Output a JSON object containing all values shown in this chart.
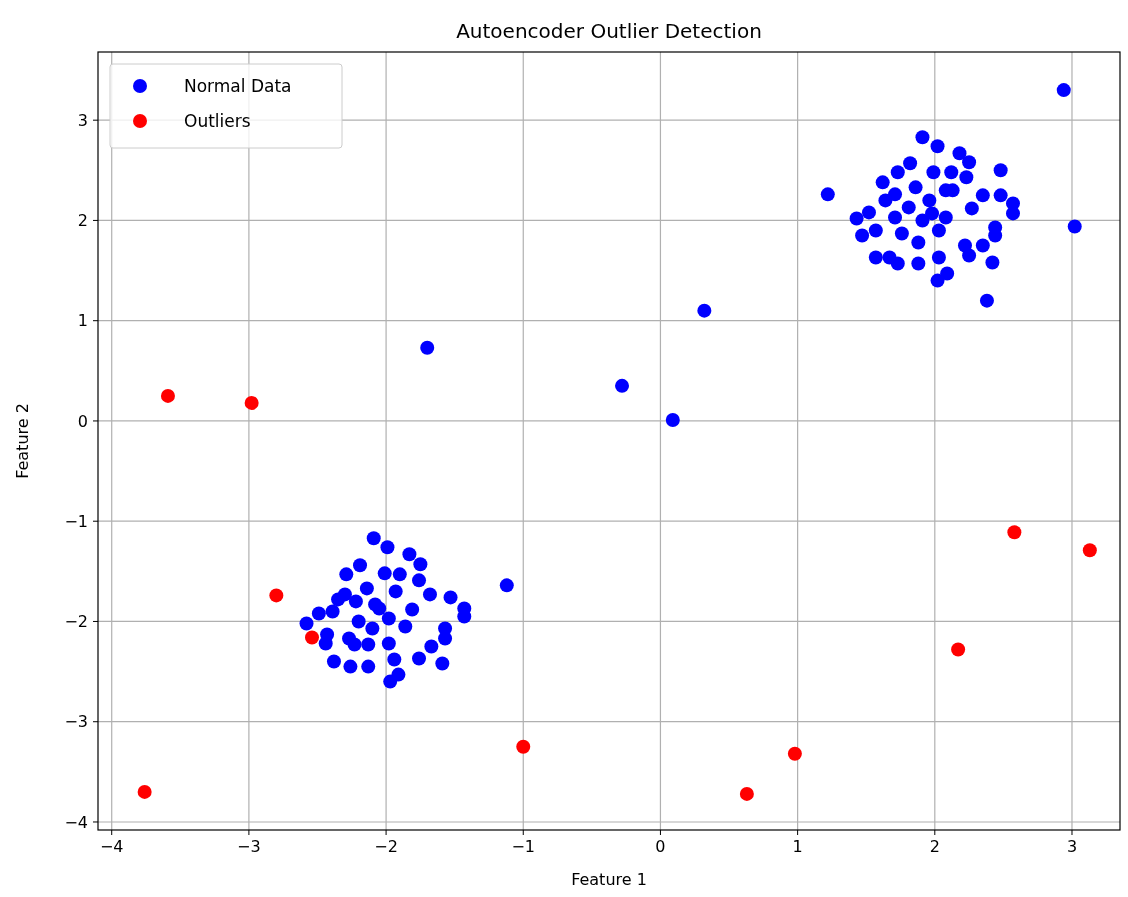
{
  "chart_data": {
    "type": "scatter",
    "title": "Autoencoder Outlier Detection",
    "xlabel": "Feature 1",
    "ylabel": "Feature 2",
    "xlim": [
      -4.1,
      3.35
    ],
    "ylim": [
      -4.08,
      3.68
    ],
    "xticks": [
      -4,
      -3,
      -2,
      -1,
      0,
      1,
      2,
      3
    ],
    "yticks": [
      -4,
      -3,
      -2,
      -1,
      0,
      1,
      2,
      3
    ],
    "grid": true,
    "legend": "top left",
    "marker": "circle",
    "series": [
      {
        "name": "Normal Data",
        "color": "#0000ff",
        "x": [
          -2.09,
          -1.99,
          -1.83,
          -1.75,
          -2.19,
          -2.29,
          -2.01,
          -1.9,
          -1.76,
          -2.14,
          -1.93,
          -1.68,
          -1.53,
          -2.35,
          -2.22,
          -2.08,
          -1.81,
          -1.43,
          -1.43,
          -2.49,
          -2.58,
          -2.39,
          -1.98,
          -2.2,
          -2.1,
          -1.86,
          -1.57,
          -1.57,
          -2.43,
          -2.44,
          -2.27,
          -1.98,
          -1.67,
          -1.76,
          -1.59,
          -2.38,
          -2.26,
          -2.13,
          -1.94,
          -1.91,
          -1.97,
          -2.23,
          -2.05,
          -2.3,
          -2.13,
          -1.12,
          1.91,
          2.02,
          2.18,
          2.25,
          1.82,
          1.73,
          2.48,
          1.99,
          2.12,
          1.62,
          2.23,
          1.86,
          2.08,
          1.22,
          1.71,
          2.35,
          2.48,
          1.64,
          1.96,
          2.57,
          2.57,
          2.27,
          1.81,
          1.52,
          1.43,
          2.08,
          1.71,
          1.91,
          2.44,
          2.44,
          3.02,
          1.47,
          1.57,
          1.76,
          2.03,
          1.88,
          2.22,
          2.35,
          1.57,
          1.73,
          1.88,
          2.03,
          2.25,
          2.42,
          2.09,
          2.02,
          2.38,
          1.67,
          1.98,
          2.13,
          2.94,
          -1.7,
          -0.28,
          0.09,
          0.32
        ],
        "values": [
          -1.17,
          -1.26,
          -1.33,
          -1.43,
          -1.44,
          -1.53,
          -1.52,
          -1.53,
          -1.59,
          -1.67,
          -1.7,
          -1.73,
          -1.76,
          -1.78,
          -1.8,
          -1.83,
          -1.88,
          -1.87,
          -1.95,
          -1.92,
          -2.02,
          -1.9,
          -1.97,
          -2.0,
          -2.07,
          -2.05,
          -2.07,
          -2.17,
          -2.13,
          -2.22,
          -2.17,
          -2.22,
          -2.25,
          -2.37,
          -2.42,
          -2.4,
          -2.45,
          -2.45,
          -2.38,
          -2.53,
          -2.6,
          -2.23,
          -1.87,
          -1.73,
          -2.23,
          -1.64,
          2.83,
          2.74,
          2.67,
          2.58,
          2.57,
          2.48,
          2.5,
          2.48,
          2.48,
          2.38,
          2.43,
          2.33,
          2.3,
          2.26,
          2.26,
          2.25,
          2.25,
          2.2,
          2.2,
          2.17,
          2.07,
          2.12,
          2.13,
          2.08,
          2.02,
          2.03,
          2.03,
          2.0,
          1.93,
          1.85,
          1.94,
          1.85,
          1.9,
          1.87,
          1.9,
          1.78,
          1.75,
          1.75,
          1.63,
          1.57,
          1.57,
          1.63,
          1.65,
          1.58,
          1.47,
          1.4,
          1.2,
          1.63,
          2.07,
          2.3,
          3.3,
          0.73,
          0.35,
          0.01,
          1.1
        ]
      },
      {
        "name": "Outliers",
        "color": "#ff0000",
        "x": [
          -3.59,
          -2.98,
          -2.8,
          -2.54,
          -3.76,
          -1.0,
          0.63,
          0.98,
          2.17,
          2.58,
          3.13
        ],
        "values": [
          0.25,
          0.18,
          -1.74,
          -2.16,
          -3.7,
          -3.25,
          -3.72,
          -3.32,
          -2.28,
          -1.11,
          -1.29
        ]
      }
    ]
  }
}
